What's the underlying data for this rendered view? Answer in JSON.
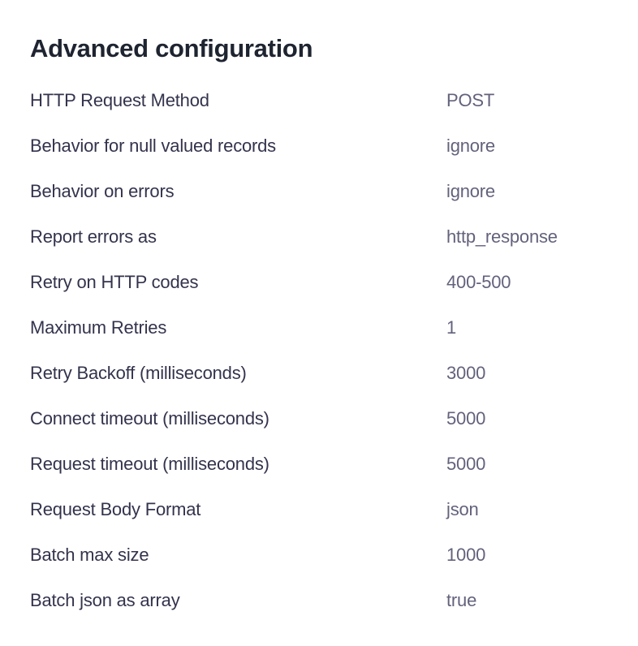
{
  "section": {
    "title": "Advanced configuration"
  },
  "config": {
    "rows": [
      {
        "label": "HTTP Request Method",
        "value": "POST"
      },
      {
        "label": "Behavior for null valued records",
        "value": "ignore"
      },
      {
        "label": "Behavior on errors",
        "value": "ignore"
      },
      {
        "label": "Report errors as",
        "value": "http_response"
      },
      {
        "label": "Retry on HTTP codes",
        "value": "400-500"
      },
      {
        "label": "Maximum Retries",
        "value": "1"
      },
      {
        "label": "Retry Backoff (milliseconds)",
        "value": "3000"
      },
      {
        "label": "Connect timeout (milliseconds)",
        "value": "5000"
      },
      {
        "label": "Request timeout (milliseconds)",
        "value": "5000"
      },
      {
        "label": "Request Body Format",
        "value": "json"
      },
      {
        "label": "Batch max size",
        "value": "1000"
      },
      {
        "label": "Batch json as array",
        "value": "true"
      }
    ],
    "colors": {
      "title": "#1e2430",
      "label": "#33334d",
      "value": "#63627c",
      "background": "#ffffff"
    }
  }
}
